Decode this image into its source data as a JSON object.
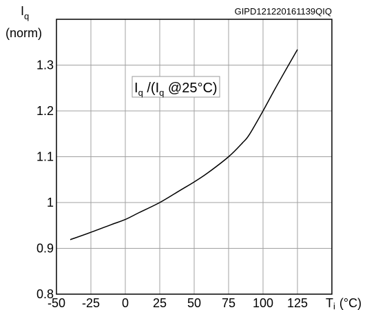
{
  "chart_data": {
    "type": "line",
    "doc_code": "GIPD121220161139QIQ",
    "ylabel_main": "I",
    "ylabel_sub": "q",
    "ylabel_unit": "(norm)",
    "xlabel_main": "T",
    "xlabel_sub": "i",
    "xlabel_unit": "(°C)",
    "annotation": {
      "p1": "I",
      "s1": "q",
      "p2": " /(I",
      "s2": "q",
      "p3": " @25°C)"
    },
    "xlim": [
      -50,
      150
    ],
    "ylim": [
      0.8,
      1.4
    ],
    "x_ticks": [
      -50,
      -25,
      0,
      25,
      50,
      75,
      100,
      125
    ],
    "x_tick_labels": [
      "-50",
      "-25",
      "0",
      "25",
      "50",
      "75",
      "100",
      "125"
    ],
    "y_ticks": [
      0.8,
      0.9,
      1.0,
      1.1,
      1.2,
      1.3
    ],
    "y_tick_labels": [
      "0.8",
      "0.9",
      "1",
      "1.1",
      "1.2",
      "1.3"
    ],
    "grid": true,
    "series": [
      {
        "x": [
          -40,
          -25,
          -10,
          0,
          10,
          25,
          40,
          50,
          60,
          75,
          85,
          90,
          100,
          110,
          125
        ],
        "y": [
          0.919,
          0.935,
          0.952,
          0.963,
          0.978,
          1.0,
          1.027,
          1.045,
          1.065,
          1.1,
          1.13,
          1.148,
          1.2,
          1.255,
          1.334
        ]
      }
    ]
  }
}
